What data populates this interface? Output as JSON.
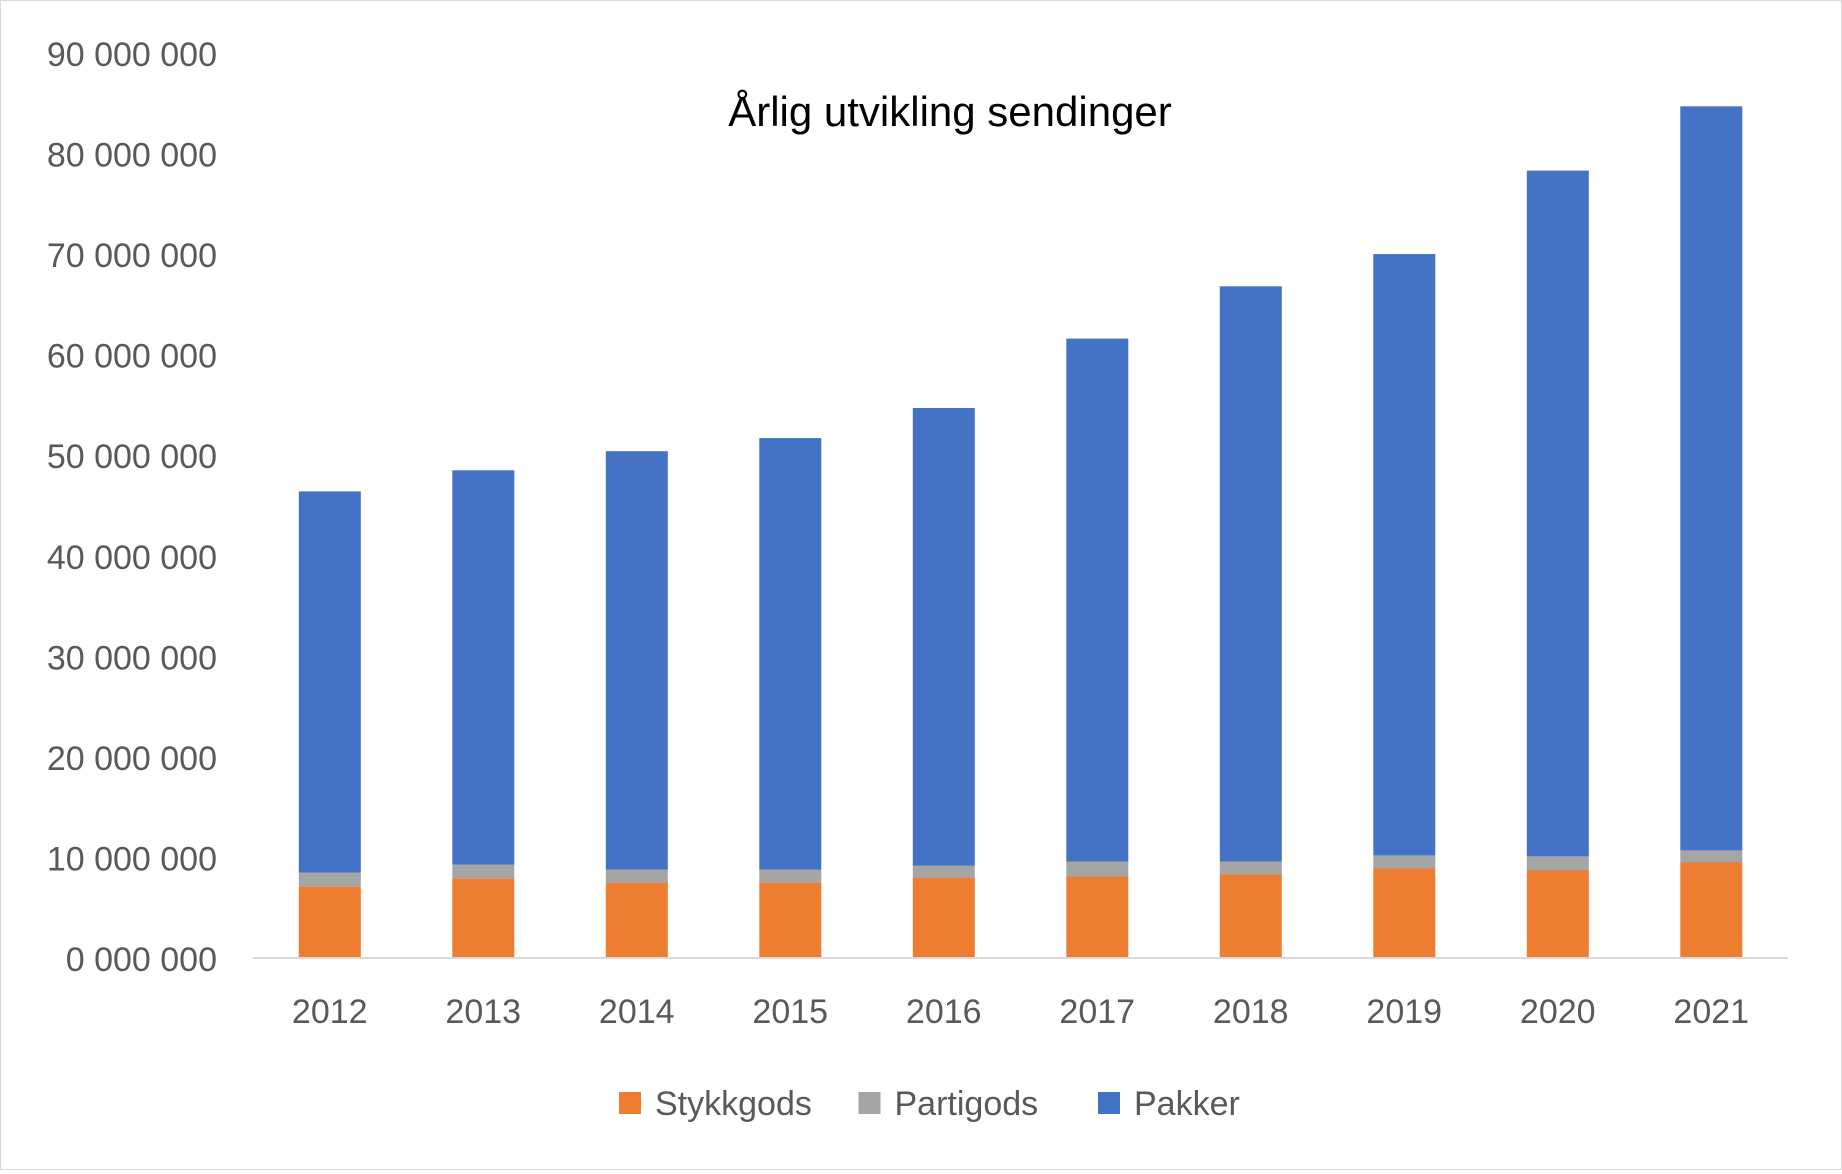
{
  "chart_data": {
    "type": "bar",
    "stacked": true,
    "title": "Årlig utvikling sendinger",
    "xlabel": "",
    "ylabel": "",
    "ylim": [
      0,
      90000000
    ],
    "y_ticks": [
      0,
      10000000,
      20000000,
      30000000,
      40000000,
      50000000,
      60000000,
      70000000,
      80000000,
      90000000
    ],
    "y_tick_labels": [
      "0 000 000",
      "10 000 000",
      "20 000 000",
      "30 000 000",
      "40 000 000",
      "50 000 000",
      "60 000 000",
      "70 000 000",
      "80 000 000",
      "90 000 000"
    ],
    "grid": false,
    "legend_position": "bottom",
    "categories": [
      "2012",
      "2013",
      "2014",
      "2015",
      "2016",
      "2017",
      "2018",
      "2019",
      "2020",
      "2021"
    ],
    "series": [
      {
        "name": "Stykkgods",
        "color": "#ED7D31",
        "values": [
          7100000,
          7900000,
          7500000,
          7500000,
          8000000,
          8100000,
          8300000,
          8900000,
          8700000,
          9500000
        ]
      },
      {
        "name": "Partigods",
        "color": "#A5A5A5",
        "values": [
          1400000,
          1400000,
          1300000,
          1300000,
          1200000,
          1500000,
          1300000,
          1300000,
          1400000,
          1200000
        ]
      },
      {
        "name": "Pakker",
        "color": "#4472C4",
        "values": [
          37900000,
          39200000,
          41600000,
          42900000,
          45500000,
          52000000,
          57200000,
          59800000,
          68200000,
          74000000
        ]
      }
    ]
  }
}
